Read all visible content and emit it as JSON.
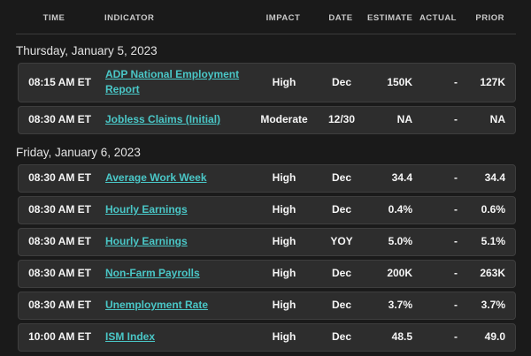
{
  "colors": {
    "background": "#1a1a1a",
    "row_background": "#2d2d2d",
    "link": "#4ac7c7",
    "impact_high": "#2bb62b",
    "impact_moderate": "#e2b01f"
  },
  "table": {
    "columns": [
      "TIME",
      "INDICATOR",
      "IMPACT",
      "DATE",
      "ESTIMATE",
      "ACTUAL",
      "PRIOR"
    ],
    "sections": [
      {
        "date": "Thursday, January 5, 2023",
        "rows": [
          {
            "time": "08:15 AM ET",
            "indicator": "ADP National Employment Report",
            "impact": "High",
            "date": "Dec",
            "estimate": "150K",
            "actual": "-",
            "prior": "127K"
          },
          {
            "time": "08:30 AM ET",
            "indicator": "Jobless Claims (Initial)",
            "impact": "Moderate",
            "date": "12/30",
            "estimate": "NA",
            "actual": "-",
            "prior": "NA"
          }
        ]
      },
      {
        "date": "Friday, January 6, 2023",
        "rows": [
          {
            "time": "08:30 AM ET",
            "indicator": "Average Work Week",
            "impact": "High",
            "date": "Dec",
            "estimate": "34.4",
            "actual": "-",
            "prior": "34.4"
          },
          {
            "time": "08:30 AM ET",
            "indicator": "Hourly Earnings",
            "impact": "High",
            "date": "Dec",
            "estimate": "0.4%",
            "actual": "-",
            "prior": "0.6%"
          },
          {
            "time": "08:30 AM ET",
            "indicator": "Hourly Earnings",
            "impact": "High",
            "date": "YOY",
            "estimate": "5.0%",
            "actual": "-",
            "prior": "5.1%"
          },
          {
            "time": "08:30 AM ET",
            "indicator": "Non-Farm Payrolls",
            "impact": "High",
            "date": "Dec",
            "estimate": "200K",
            "actual": "-",
            "prior": "263K"
          },
          {
            "time": "08:30 AM ET",
            "indicator": "Unemployment Rate",
            "impact": "High",
            "date": "Dec",
            "estimate": "3.7%",
            "actual": "-",
            "prior": "3.7%"
          },
          {
            "time": "10:00 AM ET",
            "indicator": "ISM Index",
            "impact": "High",
            "date": "Dec",
            "estimate": "48.5",
            "actual": "-",
            "prior": "49.0"
          }
        ]
      }
    ]
  }
}
